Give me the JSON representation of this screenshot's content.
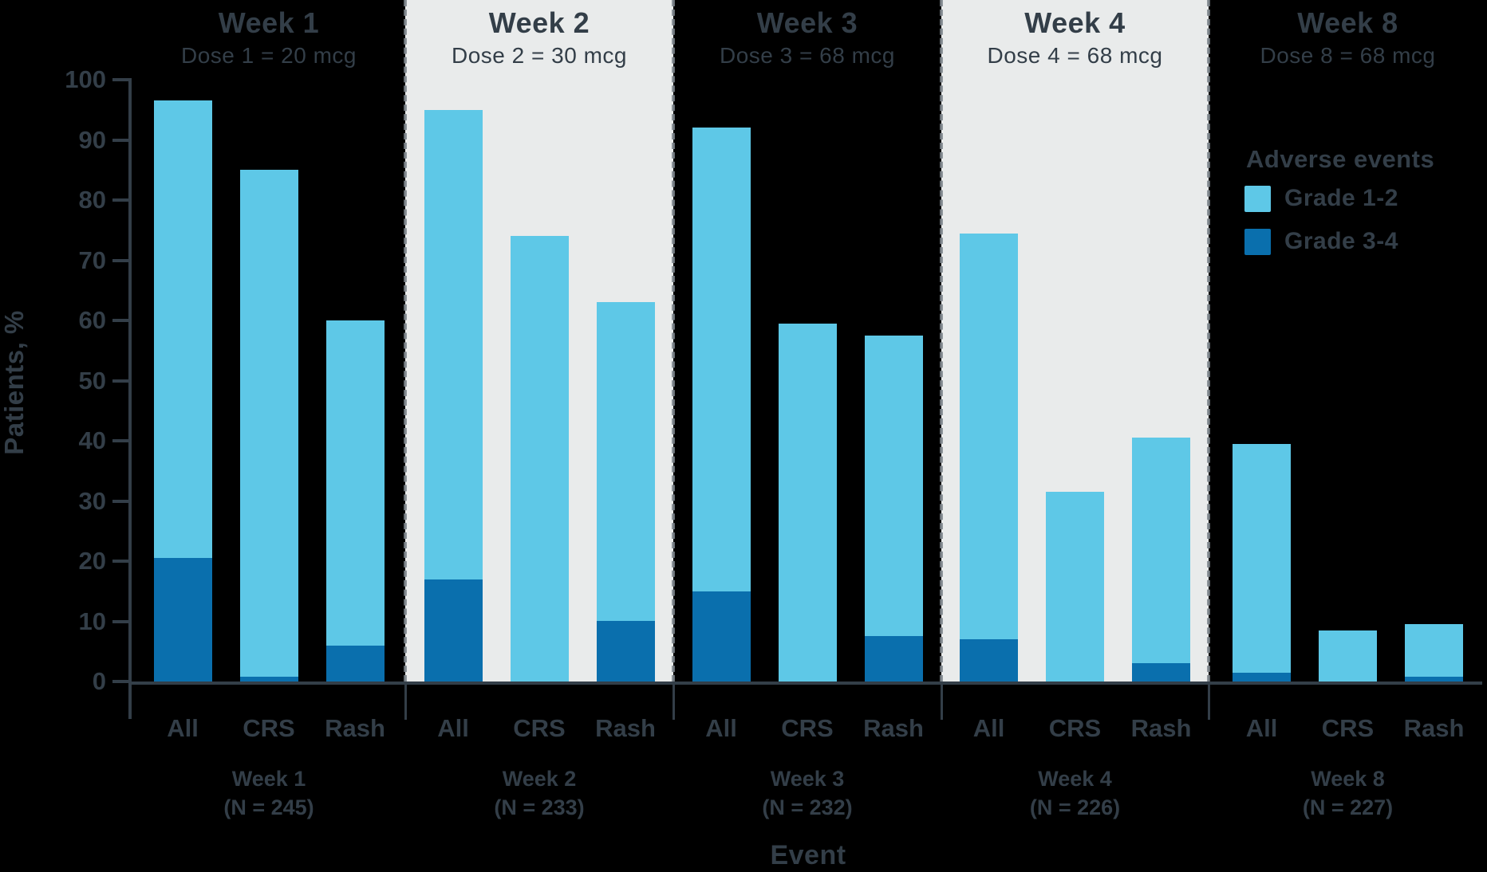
{
  "colors": {
    "grade_1_2": "#5EC8E7",
    "grade_3_4": "#0A6FAD",
    "panel_shade": "#E9EBEB",
    "text": "#333E48",
    "axis": "#333E48",
    "separator": "#7D858C",
    "background": "#000000"
  },
  "chart_data": {
    "type": "bar",
    "stacked": true,
    "ylabel": "Patients, %",
    "xlabel": "Event",
    "ylim": [
      0,
      100
    ],
    "yticks": [
      "0",
      "10",
      "20",
      "30",
      "40",
      "50",
      "60",
      "70",
      "80",
      "90",
      "100"
    ],
    "grid": false,
    "legend": {
      "title": "Adverse events",
      "position": "upper right",
      "entries": [
        {
          "label": "Grade 1-2",
          "color": "#5EC8E7"
        },
        {
          "label": "Grade 3-4",
          "color": "#0A6FAD"
        }
      ]
    },
    "categories": [
      "All",
      "CRS",
      "Rash"
    ],
    "groups": [
      {
        "week": "Week 1",
        "dose": "Dose 1 = 20 mcg",
        "n": "(N = 245)",
        "shaded": false,
        "bars": [
          {
            "event": "All",
            "total": 96.5,
            "grade_3_4": 20.5,
            "grade_1_2": 76.0
          },
          {
            "event": "CRS",
            "total": 85.0,
            "grade_3_4": 0.8,
            "grade_1_2": 84.2
          },
          {
            "event": "Rash",
            "total": 60.0,
            "grade_3_4": 6.0,
            "grade_1_2": 54.0
          }
        ]
      },
      {
        "week": "Week 2",
        "dose": "Dose 2 = 30 mcg",
        "n": "(N = 233)",
        "shaded": true,
        "bars": [
          {
            "event": "All",
            "total": 95.0,
            "grade_3_4": 17.0,
            "grade_1_2": 78.0
          },
          {
            "event": "CRS",
            "total": 74.0,
            "grade_3_4": 0.0,
            "grade_1_2": 74.0
          },
          {
            "event": "Rash",
            "total": 63.0,
            "grade_3_4": 10.0,
            "grade_1_2": 53.0
          }
        ]
      },
      {
        "week": "Week 3",
        "dose": "Dose 3 = 68 mcg",
        "n": "(N = 232)",
        "shaded": false,
        "bars": [
          {
            "event": "All",
            "total": 92.0,
            "grade_3_4": 15.0,
            "grade_1_2": 77.0
          },
          {
            "event": "CRS",
            "total": 59.5,
            "grade_3_4": 0.0,
            "grade_1_2": 59.5
          },
          {
            "event": "Rash",
            "total": 57.5,
            "grade_3_4": 7.5,
            "grade_1_2": 50.0
          }
        ]
      },
      {
        "week": "Week 4",
        "dose": "Dose 4 = 68 mcg",
        "n": "(N = 226)",
        "shaded": true,
        "bars": [
          {
            "event": "All",
            "total": 74.5,
            "grade_3_4": 7.0,
            "grade_1_2": 67.5
          },
          {
            "event": "CRS",
            "total": 31.5,
            "grade_3_4": 0.0,
            "grade_1_2": 31.5
          },
          {
            "event": "Rash",
            "total": 40.5,
            "grade_3_4": 3.0,
            "grade_1_2": 37.5
          }
        ]
      },
      {
        "week": "Week 8",
        "dose": "Dose 8 = 68 mcg",
        "n": "(N = 227)",
        "shaded": false,
        "bars": [
          {
            "event": "All",
            "total": 39.5,
            "grade_3_4": 1.5,
            "grade_1_2": 38.0
          },
          {
            "event": "CRS",
            "total": 8.5,
            "grade_3_4": 0.0,
            "grade_1_2": 8.5
          },
          {
            "event": "Rash",
            "total": 9.5,
            "grade_3_4": 0.8,
            "grade_1_2": 8.7
          }
        ]
      }
    ]
  }
}
